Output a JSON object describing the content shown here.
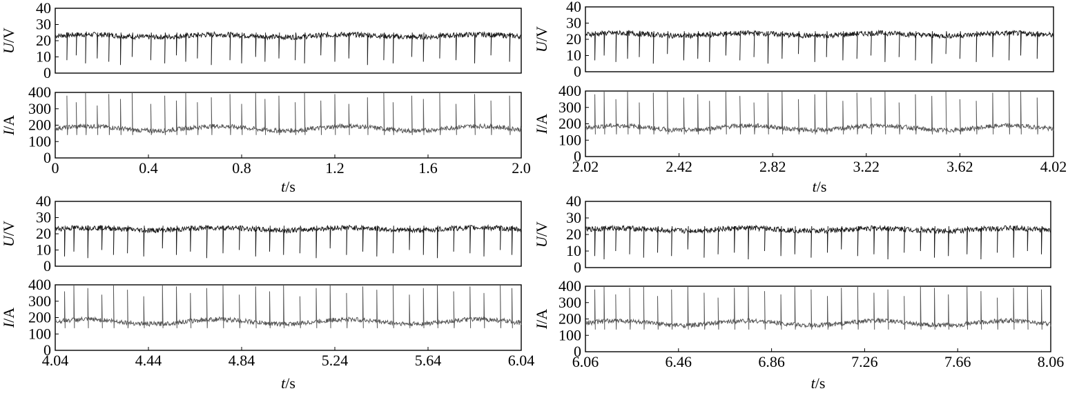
{
  "chart_data": [
    {
      "type": "line",
      "panel": "top-left",
      "x_ticks": [
        "0",
        "0.4",
        "0.8",
        "1.2",
        "1.6",
        "2.0"
      ],
      "x_range": [
        0,
        2.0
      ],
      "xlabel": {
        "var": "t",
        "unit": "/s"
      },
      "voltage": {
        "ylabel": {
          "var": "U",
          "unit": "/V"
        },
        "ylim": [
          0,
          40
        ],
        "y_ticks": [
          "0",
          "10",
          "20",
          "30",
          "40"
        ],
        "baseline": 23,
        "drop_times": [
          0.05,
          0.09,
          0.13,
          0.18,
          0.23,
          0.28,
          0.33,
          0.41,
          0.47,
          0.52,
          0.56,
          0.61,
          0.67,
          0.75,
          0.8,
          0.86,
          0.9,
          0.96,
          1.03,
          1.07,
          1.14,
          1.2,
          1.26,
          1.34,
          1.41,
          1.45,
          1.53,
          1.58,
          1.65,
          1.72,
          1.8,
          1.87,
          1.95
        ],
        "drop_depth": [
          15,
          12,
          17,
          14,
          16,
          18,
          13,
          15,
          17,
          12,
          16,
          14,
          18,
          15,
          17,
          13,
          16,
          14,
          15,
          17,
          12,
          16,
          14,
          18,
          15,
          17,
          13,
          16,
          14,
          15,
          17,
          12,
          16
        ],
        "color": "#1a1a1a"
      },
      "current": {
        "ylabel": {
          "var": "I",
          "unit": "/A"
        },
        "ylim": [
          0,
          400
        ],
        "y_ticks": [
          "0",
          "100",
          "200",
          "300",
          "400"
        ],
        "baseline": 180,
        "spike_times": [
          0.05,
          0.09,
          0.13,
          0.18,
          0.23,
          0.28,
          0.33,
          0.41,
          0.47,
          0.52,
          0.56,
          0.61,
          0.67,
          0.75,
          0.8,
          0.86,
          0.9,
          0.96,
          1.03,
          1.07,
          1.14,
          1.2,
          1.26,
          1.34,
          1.41,
          1.45,
          1.53,
          1.58,
          1.65,
          1.72,
          1.8,
          1.87,
          1.95
        ],
        "spike_peak": [
          380,
          340,
          400,
          320,
          390,
          360,
          400,
          330,
          380,
          350,
          400,
          340,
          370,
          390,
          330,
          400,
          360,
          380,
          340,
          400,
          350,
          390,
          330,
          370,
          400,
          340,
          380,
          360,
          400,
          330,
          390,
          350,
          380
        ],
        "color": "#555555"
      }
    },
    {
      "type": "line",
      "panel": "top-right",
      "x_ticks": [
        "2.02",
        "2.42",
        "2.82",
        "3.22",
        "3.62",
        "4.02"
      ],
      "x_range": [
        2.02,
        4.02
      ],
      "xlabel": {
        "var": "t",
        "unit": "/s"
      },
      "voltage": {
        "ylabel": {
          "var": "U",
          "unit": "/V"
        },
        "ylim": [
          0,
          40
        ],
        "y_ticks": [
          "0",
          "10",
          "20",
          "30",
          "40"
        ],
        "baseline": 23,
        "drop_times": [
          2.06,
          2.1,
          2.15,
          2.2,
          2.25,
          2.31,
          2.37,
          2.44,
          2.5,
          2.55,
          2.62,
          2.68,
          2.74,
          2.8,
          2.86,
          2.93,
          3.0,
          3.05,
          3.12,
          3.18,
          3.24,
          3.3,
          3.36,
          3.43,
          3.5,
          3.56,
          3.62,
          3.69,
          3.76,
          3.83,
          3.88,
          3.95
        ],
        "drop_depth": [
          16,
          13,
          17,
          15,
          14,
          18,
          12,
          16,
          15,
          17,
          13,
          16,
          14,
          18,
          15,
          12,
          17,
          14,
          16,
          15,
          13,
          17,
          14,
          16,
          18,
          12,
          15,
          17,
          14,
          16,
          13,
          15
        ],
        "color": "#1a1a1a"
      },
      "current": {
        "ylabel": {
          "var": "I",
          "unit": "/A"
        },
        "ylim": [
          0,
          400
        ],
        "y_ticks": [
          "0",
          "100",
          "200",
          "300",
          "400"
        ],
        "baseline": 175,
        "spike_times": [
          2.06,
          2.1,
          2.15,
          2.2,
          2.25,
          2.31,
          2.37,
          2.44,
          2.5,
          2.55,
          2.62,
          2.68,
          2.74,
          2.8,
          2.86,
          2.93,
          3.0,
          3.05,
          3.12,
          3.18,
          3.24,
          3.3,
          3.36,
          3.43,
          3.5,
          3.56,
          3.62,
          3.69,
          3.76,
          3.83,
          3.88,
          3.95
        ],
        "spike_peak": [
          380,
          400,
          350,
          400,
          330,
          390,
          400,
          360,
          380,
          340,
          400,
          370,
          330,
          390,
          400,
          350,
          380,
          400,
          340,
          390,
          360,
          400,
          330,
          380,
          370,
          400,
          350,
          340,
          390,
          400,
          400,
          360
        ],
        "color": "#555555"
      }
    },
    {
      "type": "line",
      "panel": "bottom-left",
      "x_ticks": [
        "4.04",
        "4.44",
        "4.84",
        "5.24",
        "5.64",
        "6.04"
      ],
      "x_range": [
        4.04,
        6.04
      ],
      "xlabel": {
        "var": "t",
        "unit": "/s"
      },
      "voltage": {
        "ylabel": {
          "var": "U",
          "unit": "/V"
        },
        "ylim": [
          0,
          40
        ],
        "y_ticks": [
          "0",
          "10",
          "20",
          "30",
          "40"
        ],
        "baseline": 23,
        "drop_times": [
          4.08,
          4.12,
          4.18,
          4.24,
          4.29,
          4.35,
          4.42,
          4.5,
          4.56,
          4.62,
          4.69,
          4.76,
          4.83,
          4.9,
          4.96,
          5.02,
          5.09,
          5.16,
          5.22,
          5.29,
          5.36,
          5.42,
          5.49,
          5.56,
          5.62,
          5.68,
          5.75,
          5.82,
          5.88,
          5.95,
          6.0
        ],
        "drop_depth": [
          17,
          14,
          18,
          13,
          16,
          15,
          17,
          12,
          16,
          14,
          18,
          15,
          13,
          17,
          14,
          16,
          15,
          18,
          12,
          16,
          14,
          17,
          15,
          13,
          16,
          18,
          14,
          15,
          17,
          13,
          16
        ],
        "color": "#1a1a1a"
      },
      "current": {
        "ylabel": {
          "var": "I",
          "unit": "/A"
        },
        "ylim": [
          0,
          400
        ],
        "y_ticks": [
          "0",
          "100",
          "200",
          "300",
          "400"
        ],
        "baseline": 175,
        "spike_times": [
          4.08,
          4.12,
          4.18,
          4.24,
          4.29,
          4.35,
          4.42,
          4.5,
          4.56,
          4.62,
          4.69,
          4.76,
          4.83,
          4.9,
          4.96,
          5.02,
          5.09,
          5.16,
          5.22,
          5.29,
          5.36,
          5.42,
          5.49,
          5.56,
          5.62,
          5.68,
          5.75,
          5.82,
          5.88,
          5.95,
          6.0
        ],
        "spike_peak": [
          360,
          400,
          380,
          340,
          400,
          370,
          330,
          400,
          390,
          350,
          380,
          400,
          340,
          390,
          360,
          400,
          330,
          380,
          400,
          350,
          390,
          370,
          400,
          340,
          380,
          400,
          360,
          390,
          350,
          400,
          380
        ],
        "color": "#555555"
      }
    },
    {
      "type": "line",
      "panel": "bottom-right",
      "x_ticks": [
        "6.06",
        "6.46",
        "6.86",
        "7.26",
        "7.66",
        "8.06"
      ],
      "x_range": [
        6.06,
        8.06
      ],
      "xlabel": {
        "var": "t",
        "unit": "/s"
      },
      "voltage": {
        "ylabel": {
          "var": "U",
          "unit": "/V"
        },
        "ylim": [
          0,
          40
        ],
        "y_ticks": [
          "0",
          "10",
          "20",
          "30",
          "40"
        ],
        "baseline": 23,
        "drop_times": [
          6.1,
          6.14,
          6.19,
          6.25,
          6.31,
          6.37,
          6.43,
          6.5,
          6.57,
          6.63,
          6.7,
          6.76,
          6.83,
          6.9,
          6.96,
          7.03,
          7.1,
          7.16,
          7.23,
          7.3,
          7.36,
          7.43,
          7.5,
          7.56,
          7.62,
          7.7,
          7.76,
          7.83,
          7.9,
          7.96,
          8.02
        ],
        "drop_depth": [
          16,
          18,
          13,
          15,
          17,
          14,
          16,
          12,
          17,
          15,
          14,
          18,
          13,
          16,
          15,
          17,
          14,
          12,
          16,
          15,
          18,
          14,
          13,
          17,
          16,
          15,
          18,
          14,
          17,
          13,
          15
        ],
        "color": "#1a1a1a"
      },
      "current": {
        "ylabel": {
          "var": "I",
          "unit": "/A"
        },
        "ylim": [
          0,
          400
        ],
        "y_ticks": [
          "0",
          "100",
          "200",
          "300",
          "400"
        ],
        "baseline": 175,
        "spike_times": [
          6.1,
          6.14,
          6.19,
          6.25,
          6.31,
          6.37,
          6.43,
          6.5,
          6.57,
          6.63,
          6.7,
          6.76,
          6.83,
          6.9,
          6.96,
          7.03,
          7.1,
          7.16,
          7.23,
          7.3,
          7.36,
          7.43,
          7.5,
          7.56,
          7.62,
          7.7,
          7.76,
          7.83,
          7.9,
          7.96,
          8.02
        ],
        "spike_peak": [
          380,
          400,
          350,
          390,
          400,
          340,
          380,
          400,
          360,
          330,
          390,
          400,
          370,
          350,
          400,
          380,
          340,
          390,
          400,
          360,
          380,
          340,
          400,
          390,
          350,
          400,
          370,
          330,
          390,
          400,
          380
        ],
        "color": "#555555"
      }
    }
  ]
}
